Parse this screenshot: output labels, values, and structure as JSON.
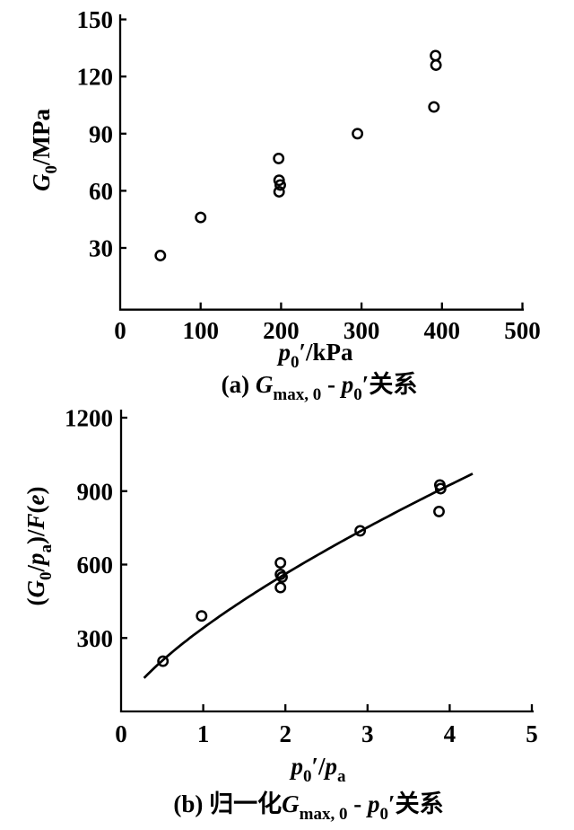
{
  "figure": {
    "background": "#ffffff",
    "ink": "#000000"
  },
  "chart_data": [
    {
      "id": "a",
      "type": "scatter",
      "title_caption": "(a) Gmax,0 - p0' 关系",
      "xlabel": "p0'/kPa",
      "ylabel": "G0/MPa",
      "xlim": [
        0,
        500
      ],
      "ylim": [
        0,
        155
      ],
      "grid": false,
      "legend": "none",
      "marker": "open-circle",
      "x_ticks": [
        "0",
        "100",
        "200",
        "300",
        "400",
        "500"
      ],
      "y_ticks": [
        "30",
        "60",
        "90",
        "120",
        "150"
      ],
      "points": [
        [
          50,
          26
        ],
        [
          100,
          46
        ],
        [
          197,
          77
        ],
        [
          197.5,
          65.5
        ],
        [
          199,
          63
        ],
        [
          197.5,
          59.5
        ],
        [
          295,
          90
        ],
        [
          392,
          131
        ],
        [
          392.5,
          126
        ],
        [
          390,
          104
        ]
      ],
      "xlabel_runs": [
        {
          "t": "p",
          "i": 1
        },
        {
          "t": "0",
          "sub": 1
        },
        {
          "t": "′"
        },
        {
          "t": "/kPa"
        }
      ],
      "ylabel_runs": [
        {
          "t": "G",
          "i": 1
        },
        {
          "t": "0",
          "sub": 1
        },
        {
          "t": "/MPa"
        }
      ],
      "caption_runs": [
        {
          "t": "("
        },
        {
          "t": "a"
        },
        {
          "t": ") "
        },
        {
          "t": "G",
          "i": 1
        },
        {
          "t": "max, 0",
          "sub": 1
        },
        {
          "t": " - "
        },
        {
          "t": "p",
          "i": 1
        },
        {
          "t": "0",
          "sub": 1
        },
        {
          "t": "′"
        },
        {
          "t": "关系",
          "cjk": 1
        }
      ]
    },
    {
      "id": "b",
      "type": "scatter",
      "title_caption": "(b) 归一化 Gmax,0 - p0' 关系",
      "xlabel": "p0'/pa",
      "ylabel": "(G0/pa)/F(e)",
      "xlim": [
        0,
        5
      ],
      "ylim": [
        0,
        1230
      ],
      "grid": false,
      "legend": "none",
      "marker": "open-circle",
      "x_ticks": [
        "0",
        "1",
        "2",
        "3",
        "4",
        "5"
      ],
      "y_ticks": [
        "300",
        "600",
        "900",
        "1200"
      ],
      "points": [
        [
          0.51,
          205
        ],
        [
          0.98,
          390
        ],
        [
          1.94,
          607
        ],
        [
          1.94,
          560
        ],
        [
          1.96,
          549
        ],
        [
          1.94,
          506
        ],
        [
          2.91,
          738
        ],
        [
          3.88,
          925
        ],
        [
          3.89,
          910
        ],
        [
          3.87,
          817
        ]
      ],
      "curve": {
        "type": "power",
        "equation": "y = 341 * x^0.72",
        "a": 341,
        "b": 0.72,
        "from": 0.28,
        "to": 4.28
      },
      "xlabel_runs": [
        {
          "t": "p",
          "i": 1
        },
        {
          "t": "0",
          "sub": 1
        },
        {
          "t": "′"
        },
        {
          "t": "/"
        },
        {
          "t": "p",
          "i": 1
        },
        {
          "t": "a",
          "sub": 1
        }
      ],
      "ylabel_runs": [
        {
          "t": "("
        },
        {
          "t": "G",
          "i": 1
        },
        {
          "t": "0",
          "sub": 1
        },
        {
          "t": "/"
        },
        {
          "t": "p",
          "i": 1
        },
        {
          "t": "a",
          "sub": 1
        },
        {
          "t": ")"
        },
        {
          "t": "/"
        },
        {
          "t": "F",
          "i": 1
        },
        {
          "t": "("
        },
        {
          "t": "e",
          "i": 1
        },
        {
          "t": ")"
        }
      ],
      "caption_runs": [
        {
          "t": "("
        },
        {
          "t": "b"
        },
        {
          "t": ") "
        },
        {
          "t": "归一化",
          "cjk": 1
        },
        {
          "t": "G",
          "i": 1
        },
        {
          "t": "max, 0",
          "sub": 1
        },
        {
          "t": " - "
        },
        {
          "t": "p",
          "i": 1
        },
        {
          "t": "0",
          "sub": 1
        },
        {
          "t": "′"
        },
        {
          "t": "关系",
          "cjk": 1
        }
      ]
    }
  ]
}
